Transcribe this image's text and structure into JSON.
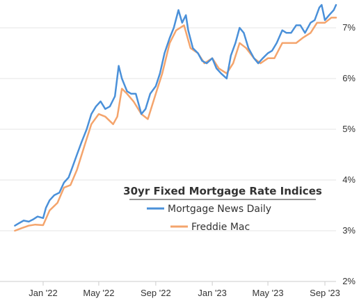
{
  "chart_data": {
    "type": "line",
    "title": "30yr Fixed Mortgage Rate Indices",
    "y_axis": {
      "position": "right",
      "min": 2,
      "max": 7.5,
      "ticks": [
        2,
        3,
        4,
        5,
        6,
        7
      ],
      "tick_labels": [
        "2%",
        "3%",
        "4%",
        "5%",
        "6%",
        "7%"
      ]
    },
    "x_axis": {
      "type": "date",
      "start": "2021-11-01",
      "end": "2023-09-25",
      "ticks": [
        "2022-01-01",
        "2022-05-01",
        "2022-09-01",
        "2023-01-01",
        "2023-05-01",
        "2023-09-01"
      ],
      "tick_labels": [
        "Jan '22",
        "May '22",
        "Sep '22",
        "Jan '23",
        "May '23",
        "Sep '23"
      ]
    },
    "grid": "horizontal",
    "legend_position": "center-right",
    "series": [
      {
        "name": "Mortgage News Daily",
        "color": "#4a90d9",
        "points": [
          [
            "2021-11-01",
            3.1
          ],
          [
            "2021-11-10",
            3.15
          ],
          [
            "2021-11-20",
            3.2
          ],
          [
            "2021-12-01",
            3.18
          ],
          [
            "2021-12-10",
            3.22
          ],
          [
            "2021-12-20",
            3.28
          ],
          [
            "2022-01-01",
            3.25
          ],
          [
            "2022-01-07",
            3.45
          ],
          [
            "2022-01-15",
            3.6
          ],
          [
            "2022-01-25",
            3.7
          ],
          [
            "2022-02-05",
            3.75
          ],
          [
            "2022-02-15",
            3.95
          ],
          [
            "2022-02-25",
            4.05
          ],
          [
            "2022-03-05",
            4.25
          ],
          [
            "2022-03-15",
            4.5
          ],
          [
            "2022-03-25",
            4.75
          ],
          [
            "2022-04-05",
            5.0
          ],
          [
            "2022-04-15",
            5.3
          ],
          [
            "2022-04-25",
            5.45
          ],
          [
            "2022-05-05",
            5.55
          ],
          [
            "2022-05-15",
            5.4
          ],
          [
            "2022-05-25",
            5.45
          ],
          [
            "2022-06-05",
            5.65
          ],
          [
            "2022-06-13",
            6.25
          ],
          [
            "2022-06-20",
            6.0
          ],
          [
            "2022-07-01",
            5.75
          ],
          [
            "2022-07-10",
            5.7
          ],
          [
            "2022-07-20",
            5.7
          ],
          [
            "2022-08-01",
            5.3
          ],
          [
            "2022-08-10",
            5.4
          ],
          [
            "2022-08-20",
            5.7
          ],
          [
            "2022-09-01",
            5.85
          ],
          [
            "2022-09-10",
            6.1
          ],
          [
            "2022-09-20",
            6.5
          ],
          [
            "2022-10-01",
            6.8
          ],
          [
            "2022-10-10",
            7.0
          ],
          [
            "2022-10-20",
            7.35
          ],
          [
            "2022-10-28",
            7.1
          ],
          [
            "2022-11-05",
            7.25
          ],
          [
            "2022-11-10",
            6.95
          ],
          [
            "2022-11-20",
            6.6
          ],
          [
            "2022-12-01",
            6.5
          ],
          [
            "2022-12-10",
            6.35
          ],
          [
            "2022-12-20",
            6.3
          ],
          [
            "2023-01-01",
            6.4
          ],
          [
            "2023-01-10",
            6.2
          ],
          [
            "2023-01-20",
            6.1
          ],
          [
            "2023-02-01",
            6.0
          ],
          [
            "2023-02-10",
            6.45
          ],
          [
            "2023-02-20",
            6.7
          ],
          [
            "2023-03-01",
            7.0
          ],
          [
            "2023-03-10",
            6.9
          ],
          [
            "2023-03-20",
            6.6
          ],
          [
            "2023-04-01",
            6.4
          ],
          [
            "2023-04-10",
            6.3
          ],
          [
            "2023-04-20",
            6.4
          ],
          [
            "2023-05-01",
            6.5
          ],
          [
            "2023-05-10",
            6.55
          ],
          [
            "2023-05-20",
            6.7
          ],
          [
            "2023-06-01",
            6.95
          ],
          [
            "2023-06-10",
            6.9
          ],
          [
            "2023-06-20",
            6.9
          ],
          [
            "2023-07-01",
            7.05
          ],
          [
            "2023-07-10",
            7.05
          ],
          [
            "2023-07-20",
            6.9
          ],
          [
            "2023-08-01",
            7.1
          ],
          [
            "2023-08-10",
            7.15
          ],
          [
            "2023-08-20",
            7.4
          ],
          [
            "2023-08-25",
            7.45
          ],
          [
            "2023-09-01",
            7.15
          ],
          [
            "2023-09-10",
            7.25
          ],
          [
            "2023-09-20",
            7.35
          ],
          [
            "2023-09-25",
            7.45
          ]
        ]
      },
      {
        "name": "Freddie Mac",
        "color": "#f4a46c",
        "points": [
          [
            "2021-11-01",
            3.0
          ],
          [
            "2021-11-15",
            3.05
          ],
          [
            "2021-12-01",
            3.1
          ],
          [
            "2021-12-15",
            3.12
          ],
          [
            "2022-01-01",
            3.11
          ],
          [
            "2022-01-15",
            3.4
          ],
          [
            "2022-02-01",
            3.55
          ],
          [
            "2022-02-15",
            3.85
          ],
          [
            "2022-03-01",
            3.9
          ],
          [
            "2022-03-15",
            4.2
          ],
          [
            "2022-04-01",
            4.7
          ],
          [
            "2022-04-15",
            5.1
          ],
          [
            "2022-05-01",
            5.3
          ],
          [
            "2022-05-15",
            5.25
          ],
          [
            "2022-06-01",
            5.1
          ],
          [
            "2022-06-10",
            5.25
          ],
          [
            "2022-06-20",
            5.8
          ],
          [
            "2022-07-01",
            5.7
          ],
          [
            "2022-07-15",
            5.55
          ],
          [
            "2022-08-01",
            5.3
          ],
          [
            "2022-08-15",
            5.2
          ],
          [
            "2022-09-01",
            5.7
          ],
          [
            "2022-09-15",
            6.1
          ],
          [
            "2022-10-01",
            6.7
          ],
          [
            "2022-10-15",
            6.95
          ],
          [
            "2022-11-01",
            7.05
          ],
          [
            "2022-11-15",
            6.6
          ],
          [
            "2022-12-01",
            6.5
          ],
          [
            "2022-12-15",
            6.3
          ],
          [
            "2023-01-01",
            6.4
          ],
          [
            "2023-01-15",
            6.2
          ],
          [
            "2023-02-01",
            6.1
          ],
          [
            "2023-02-15",
            6.3
          ],
          [
            "2023-03-01",
            6.7
          ],
          [
            "2023-03-15",
            6.6
          ],
          [
            "2023-04-01",
            6.4
          ],
          [
            "2023-04-15",
            6.3
          ],
          [
            "2023-05-01",
            6.4
          ],
          [
            "2023-05-15",
            6.4
          ],
          [
            "2023-06-01",
            6.7
          ],
          [
            "2023-06-15",
            6.7
          ],
          [
            "2023-07-01",
            6.7
          ],
          [
            "2023-07-15",
            6.8
          ],
          [
            "2023-08-01",
            6.9
          ],
          [
            "2023-08-15",
            7.1
          ],
          [
            "2023-09-01",
            7.1
          ],
          [
            "2023-09-15",
            7.2
          ],
          [
            "2023-09-25",
            7.2
          ]
        ]
      }
    ]
  }
}
